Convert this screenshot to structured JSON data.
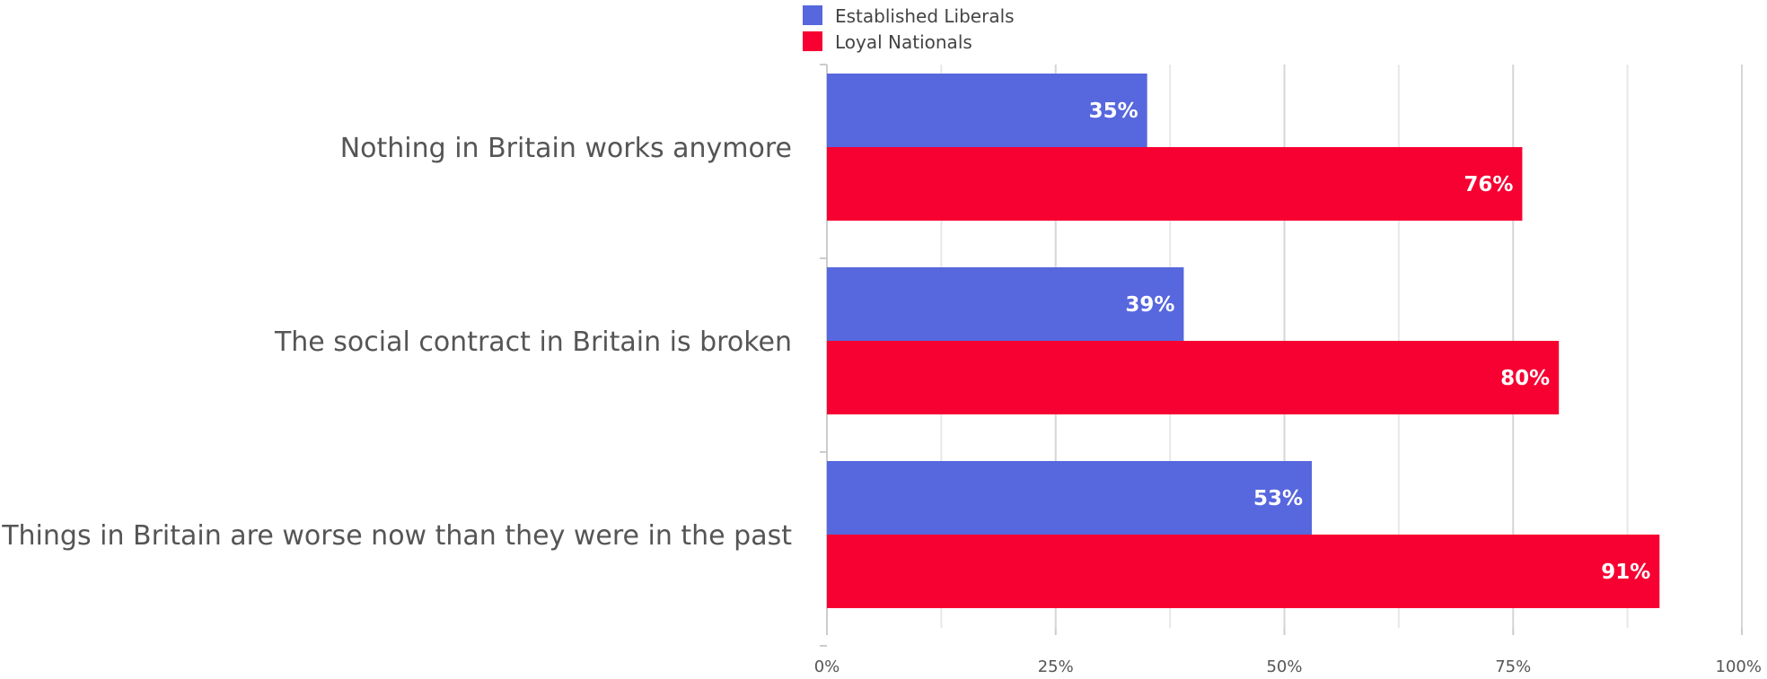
{
  "chart_data": {
    "type": "bar",
    "orientation": "horizontal",
    "categories": [
      "Nothing in Britain works anymore",
      "The social contract in Britain is broken",
      "Things in Britain are worse now than they were in the past"
    ],
    "series": [
      {
        "name": "Established Liberals",
        "color": "#5767de",
        "values": [
          35,
          39,
          53
        ]
      },
      {
        "name": "Loyal Nationals",
        "color": "#f70032",
        "values": [
          76,
          80,
          91
        ]
      }
    ],
    "data_labels": [
      [
        "35%",
        "39%",
        "53%"
      ],
      [
        "76%",
        "80%",
        "91%"
      ]
    ],
    "xlim": [
      0,
      100
    ],
    "x_ticks": [
      0,
      25,
      50,
      75,
      100
    ],
    "x_tick_labels": [
      "0%",
      "25%",
      "50%",
      "75%",
      "100%"
    ],
    "title": "",
    "xlabel": "",
    "ylabel": "",
    "grid": true,
    "legend_position": "top"
  }
}
